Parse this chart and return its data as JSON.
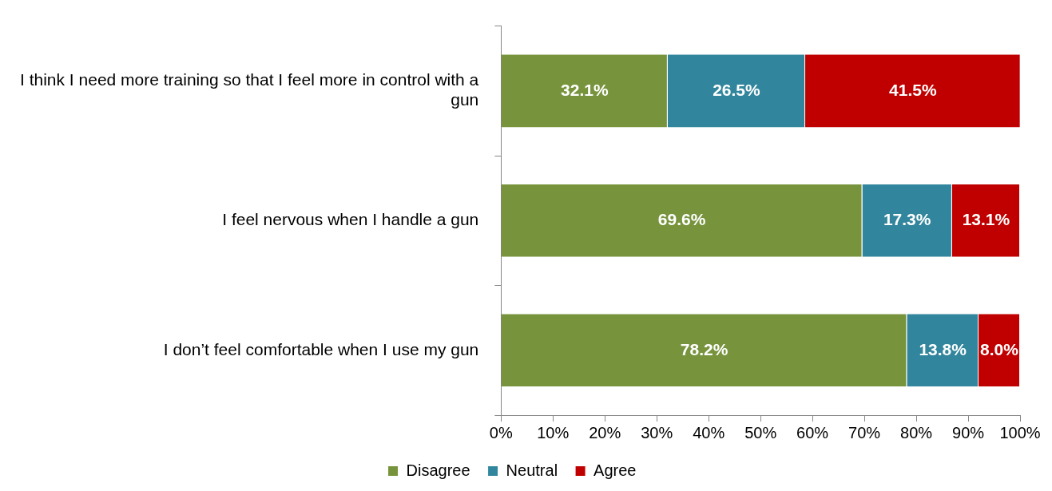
{
  "chart_data": {
    "type": "bar",
    "orientation": "horizontal",
    "stacked": true,
    "categories": [
      "I think I need more training so that I feel more in control with a gun",
      "I feel nervous when I handle a gun",
      "I don’t feel comfortable when I use my gun"
    ],
    "series": [
      {
        "name": "Disagree",
        "color": "#77933c",
        "values": [
          32.1,
          69.6,
          78.2
        ],
        "value_labels": [
          "32.1%",
          "69.6%",
          "78.2%"
        ]
      },
      {
        "name": "Neutral",
        "color": "#31859c",
        "values": [
          26.5,
          17.3,
          13.8
        ],
        "value_labels": [
          "26.5%",
          "17.3%",
          "13.8%"
        ]
      },
      {
        "name": "Agree",
        "color": "#c00000",
        "values": [
          41.5,
          13.1,
          8.0
        ],
        "value_labels": [
          "41.5%",
          "13.1%",
          "8.0%"
        ]
      }
    ],
    "xlim": [
      0,
      100
    ],
    "xticks": [
      {
        "value": 0,
        "label": "0%"
      },
      {
        "value": 10,
        "label": "10%"
      },
      {
        "value": 20,
        "label": "20%"
      },
      {
        "value": 30,
        "label": "30%"
      },
      {
        "value": 40,
        "label": "40%"
      },
      {
        "value": 50,
        "label": "50%"
      },
      {
        "value": 60,
        "label": "60%"
      },
      {
        "value": 70,
        "label": "70%"
      },
      {
        "value": 80,
        "label": "80%"
      },
      {
        "value": 90,
        "label": "90%"
      },
      {
        "value": 100,
        "label": "100%"
      }
    ],
    "grid": false,
    "legend": "bottom"
  }
}
